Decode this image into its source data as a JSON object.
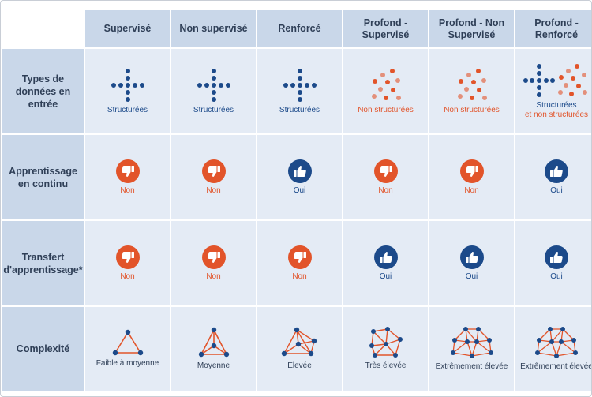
{
  "columns": [
    "Supervisé",
    "Non supervisé",
    "Renforcé",
    "Profond - Supervisé",
    "Profond - Non Supervisé",
    "Profond - Renforcé"
  ],
  "rows": [
    "Types de données en entrée",
    "Apprentissage en continu",
    "Transfert d'apprentissage*",
    "Complexité"
  ],
  "data_types": [
    "Structurées",
    "Structurées",
    "Structurées",
    "Non structurées",
    "Non structurées",
    "Structurées et non structurées"
  ],
  "continuous_learning": [
    "Non",
    "Non",
    "Oui",
    "Non",
    "Non",
    "Oui"
  ],
  "transfer_learning": [
    "Non",
    "Non",
    "Non",
    "Oui",
    "Oui",
    "Oui"
  ],
  "complexity": [
    "Faible à moyenne",
    "Moyenne",
    "Élevée",
    "Très élevée",
    "Extrêmement élevée",
    "Extrêmement élevée"
  ],
  "colors": {
    "header_bg": "#c9d7e9",
    "cell_bg": "#e4ebf5",
    "blue": "#1c4a8a",
    "orange": "#e2542a"
  }
}
